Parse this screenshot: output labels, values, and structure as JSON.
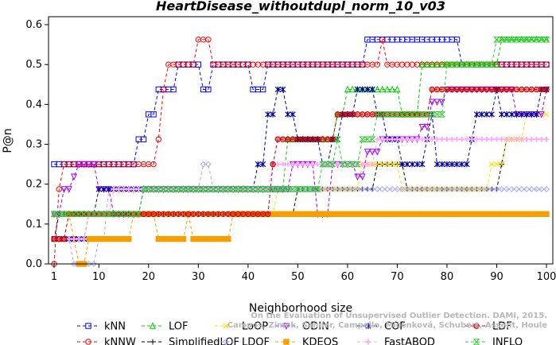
{
  "chart_data": {
    "type": "line",
    "title": "HeartDisease_withoutdupl_norm_10_v03",
    "xlabel": "Neighborhood size",
    "ylabel": "P@n",
    "xlim": [
      1,
      100
    ],
    "ylim": [
      0,
      0.6
    ],
    "xticks": [
      1,
      10,
      20,
      30,
      40,
      50,
      60,
      70,
      80,
      90,
      100
    ],
    "yticks": [
      0.0,
      0.1,
      0.2,
      0.3,
      0.4,
      0.5,
      0.6
    ],
    "grid": false,
    "legend_position": "bottom",
    "watermark": [
      "Campos, Zimek, Sander, Campello, Micenková, Schubert, Assent, Houle",
      "On the Evaluation of Unsupervised Outlier Detection. DAMI, 2015."
    ],
    "series": [
      {
        "name": "kNN",
        "color": "#0000ff",
        "marker": "square",
        "points": [
          [
            1,
            0.25
          ],
          [
            17,
            0.25
          ],
          [
            18,
            0.3125
          ],
          [
            20,
            0.375
          ],
          [
            22,
            0.4375
          ],
          [
            25,
            0.4375
          ],
          [
            26,
            0.5
          ],
          [
            30,
            0.5
          ],
          [
            31,
            0.4375
          ],
          [
            33,
            0.5
          ],
          [
            40,
            0.5
          ],
          [
            41,
            0.4375
          ],
          [
            43,
            0.4375
          ],
          [
            44,
            0.5
          ],
          [
            63,
            0.5
          ],
          [
            64,
            0.5625
          ],
          [
            82,
            0.5625
          ],
          [
            83,
            0.5
          ],
          [
            100,
            0.5
          ]
        ]
      },
      {
        "name": "kNNW",
        "color": "#ff0000",
        "marker": "circle",
        "points": [
          [
            1,
            0.0
          ],
          [
            2,
            0.1875
          ],
          [
            3,
            0.25
          ],
          [
            21,
            0.25
          ],
          [
            22,
            0.3125
          ],
          [
            23,
            0.4375
          ],
          [
            24,
            0.5
          ],
          [
            29,
            0.5
          ],
          [
            30,
            0.5625
          ],
          [
            32,
            0.5625
          ],
          [
            33,
            0.5
          ],
          [
            66,
            0.5
          ],
          [
            67,
            0.5625
          ],
          [
            68,
            0.5
          ],
          [
            100,
            0.5
          ]
        ]
      },
      {
        "name": "LOF",
        "color": "#00cc00",
        "marker": "triangle-up",
        "points": [
          [
            1,
            0.125
          ],
          [
            18,
            0.125
          ],
          [
            19,
            0.1875
          ],
          [
            47,
            0.1875
          ],
          [
            48,
            0.3125
          ],
          [
            57,
            0.3125
          ],
          [
            58,
            0.375
          ],
          [
            60,
            0.4375
          ],
          [
            70,
            0.4375
          ],
          [
            71,
            0.375
          ],
          [
            74,
            0.375
          ],
          [
            75,
            0.5
          ],
          [
            90,
            0.5
          ],
          [
            91,
            0.5625
          ],
          [
            100,
            0.5625
          ]
        ]
      },
      {
        "name": "SimplifiedLOF",
        "color": "#000000",
        "marker": "plus",
        "points": [
          [
            1,
            0.0625
          ],
          [
            2,
            0.125
          ],
          [
            45,
            0.125
          ],
          [
            50,
            0.1875
          ],
          [
            65,
            0.1875
          ],
          [
            66,
            0.25
          ],
          [
            71,
            0.25
          ],
          [
            72,
            0.1875
          ],
          [
            90,
            0.1875
          ],
          [
            91,
            0.25
          ],
          [
            92,
            0.3125
          ],
          [
            100,
            0.3125
          ]
        ]
      },
      {
        "name": "LoOP",
        "color": "#ffdd00",
        "marker": "x",
        "points": [
          [
            1,
            0.125
          ],
          [
            10,
            0.125
          ],
          [
            11,
            0.125
          ],
          [
            45,
            0.125
          ],
          [
            46,
            0.1875
          ],
          [
            62,
            0.1875
          ],
          [
            63,
            0.25
          ],
          [
            70,
            0.25
          ],
          [
            71,
            0.1875
          ],
          [
            85,
            0.1875
          ],
          [
            89,
            0.25
          ],
          [
            92,
            0.3125
          ],
          [
            96,
            0.375
          ],
          [
            100,
            0.375
          ]
        ]
      },
      {
        "name": "LDOF",
        "color": "#aaaaff",
        "marker": "diamond",
        "points": [
          [
            1,
            0.0625
          ],
          [
            5,
            0.0
          ],
          [
            9,
            0.0
          ],
          [
            10,
            0.0625
          ],
          [
            12,
            0.1875
          ],
          [
            30,
            0.1875
          ],
          [
            31,
            0.25
          ],
          [
            33,
            0.1875
          ],
          [
            90,
            0.1875
          ],
          [
            100,
            0.1875
          ]
        ]
      },
      {
        "name": "ODIN",
        "color": "#9900ff",
        "marker": "triangle-down",
        "points": [
          [
            1,
            0.125
          ],
          [
            3,
            0.1875
          ],
          [
            4,
            0.1875
          ],
          [
            5,
            0.21875
          ],
          [
            6,
            0.25
          ],
          [
            9,
            0.25
          ],
          [
            10,
            0.1875
          ],
          [
            12,
            0.1875
          ],
          [
            13,
            0.125
          ],
          [
            15,
            0.125
          ],
          [
            19,
            0.1875
          ],
          [
            48,
            0.1875
          ],
          [
            49,
            0.25
          ],
          [
            53,
            0.25
          ],
          [
            54,
            0.125
          ],
          [
            56,
            0.125
          ],
          [
            57,
            0.25
          ],
          [
            61,
            0.25
          ],
          [
            62,
            0.21875
          ],
          [
            64,
            0.28125
          ],
          [
            67,
            0.3125
          ],
          [
            75,
            0.34375
          ],
          [
            77,
            0.40625
          ],
          [
            80,
            0.4375
          ],
          [
            93,
            0.4375
          ],
          [
            94,
            0.375
          ],
          [
            100,
            0.4375
          ]
        ]
      },
      {
        "name": "KDEOS",
        "color": "#f5a000",
        "marker": "square-filled",
        "points": [
          [
            1,
            0.0625
          ],
          [
            4,
            0.125
          ],
          [
            5,
            0.0625
          ],
          [
            6,
            0.0
          ],
          [
            8,
            0.0625
          ],
          [
            16,
            0.0625
          ],
          [
            17,
            0.125
          ],
          [
            21,
            0.125
          ],
          [
            22,
            0.0625
          ],
          [
            27,
            0.0625
          ],
          [
            28,
            0.125
          ],
          [
            29,
            0.0625
          ],
          [
            36,
            0.0625
          ],
          [
            37,
            0.125
          ],
          [
            50,
            0.125
          ],
          [
            51,
            0.125
          ],
          [
            100,
            0.125
          ]
        ]
      },
      {
        "name": "COF",
        "color": "#000099",
        "marker": "asterisk",
        "points": [
          [
            1,
            0.0625
          ],
          [
            7,
            0.0625
          ],
          [
            8,
            0.125
          ],
          [
            10,
            0.1875
          ],
          [
            11,
            0.1875
          ],
          [
            25,
            0.1875
          ],
          [
            30,
            0.1875
          ],
          [
            41,
            0.1875
          ],
          [
            42,
            0.25
          ],
          [
            44,
            0.375
          ],
          [
            46,
            0.4375
          ],
          [
            48,
            0.375
          ],
          [
            50,
            0.3125
          ],
          [
            54,
            0.3125
          ],
          [
            55,
            0.25
          ],
          [
            57,
            0.3125
          ],
          [
            59,
            0.375
          ],
          [
            62,
            0.4375
          ],
          [
            64,
            0.4375
          ],
          [
            66,
            0.375
          ],
          [
            68,
            0.3125
          ],
          [
            70,
            0.3125
          ],
          [
            71,
            0.25
          ],
          [
            75,
            0.25
          ],
          [
            76,
            0.3125
          ],
          [
            77,
            0.375
          ],
          [
            78,
            0.25
          ],
          [
            83,
            0.25
          ],
          [
            85,
            0.3125
          ],
          [
            86,
            0.375
          ],
          [
            89,
            0.375
          ],
          [
            90,
            0.4375
          ],
          [
            91,
            0.375
          ],
          [
            98,
            0.375
          ],
          [
            99,
            0.4375
          ],
          [
            100,
            0.4375
          ]
        ]
      },
      {
        "name": "FastABOD",
        "color": "#ffaaff",
        "marker": "plus-bold",
        "points": [
          [
            1,
            0.0625
          ],
          [
            7,
            0.0625
          ],
          [
            8,
            0.125
          ],
          [
            12,
            0.125
          ],
          [
            13,
            0.1875
          ],
          [
            44,
            0.1875
          ],
          [
            45,
            0.25
          ],
          [
            55,
            0.25
          ],
          [
            56,
            0.25
          ],
          [
            65,
            0.25
          ],
          [
            66,
            0.3125
          ],
          [
            100,
            0.3125
          ]
        ]
      },
      {
        "name": "LDF",
        "color": "#cc0000",
        "marker": "circle-filled",
        "points": [
          [
            1,
            0.0625
          ],
          [
            4,
            0.125
          ],
          [
            44,
            0.125
          ],
          [
            45,
            0.25
          ],
          [
            46,
            0.3125
          ],
          [
            57,
            0.3125
          ],
          [
            58,
            0.375
          ],
          [
            76,
            0.375
          ],
          [
            77,
            0.4375
          ],
          [
            100,
            0.4375
          ]
        ]
      },
      {
        "name": "INFLO",
        "color": "#33cc33",
        "marker": "hourglass",
        "points": [
          [
            1,
            0.125
          ],
          [
            18,
            0.125
          ],
          [
            19,
            0.1875
          ],
          [
            48,
            0.1875
          ],
          [
            54,
            0.1875
          ],
          [
            55,
            0.25
          ],
          [
            56,
            0.25
          ],
          [
            58,
            0.3125
          ],
          [
            59,
            0.25
          ],
          [
            63,
            0.3125
          ],
          [
            66,
            0.375
          ],
          [
            75,
            0.375
          ],
          [
            80,
            0.5
          ],
          [
            89,
            0.5
          ],
          [
            90,
            0.5625
          ],
          [
            100,
            0.5625
          ]
        ]
      }
    ]
  }
}
